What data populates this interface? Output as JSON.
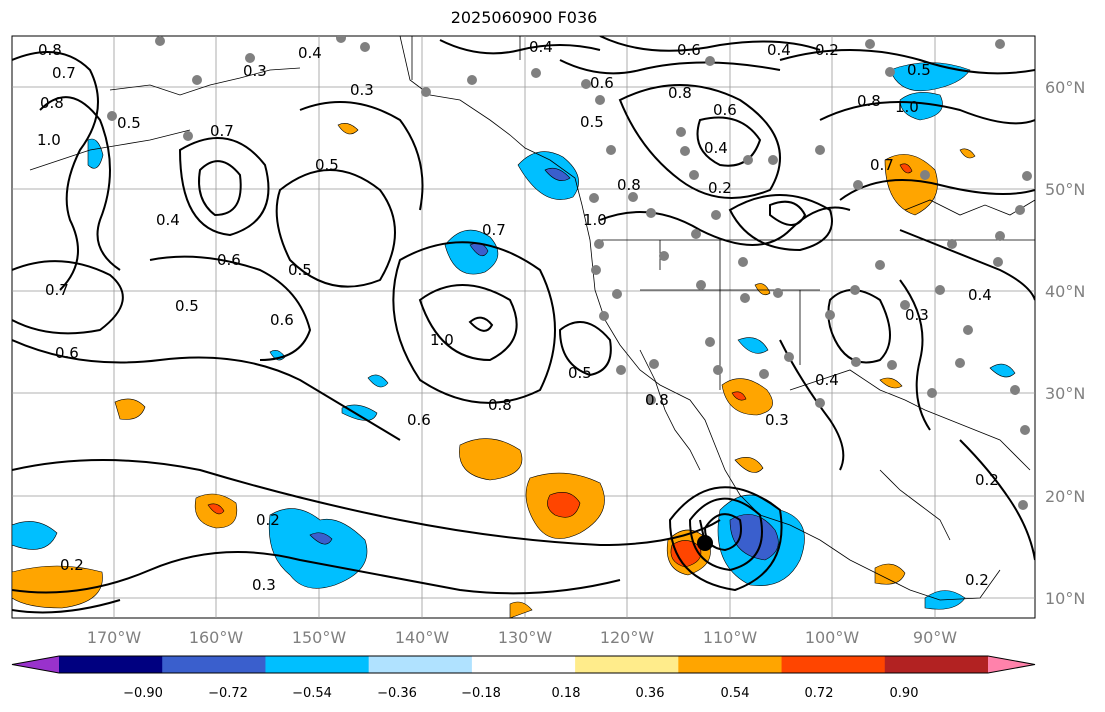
{
  "title": "2025060900 F036",
  "lon_labels": [
    "170°W",
    "160°W",
    "150°W",
    "140°W",
    "130°W",
    "120°W",
    "110°W",
    "100°W",
    "90°W"
  ],
  "lat_labels": [
    "60°N",
    "50°N",
    "40°N",
    "30°N",
    "20°N",
    "10°N"
  ],
  "colorbar": {
    "ticks": [
      "−0.90",
      "−0.72",
      "−0.54",
      "−0.36",
      "−0.18",
      "0.18",
      "0.36",
      "0.54",
      "0.72",
      "0.90"
    ],
    "colors": [
      "#9932cc",
      "#000080",
      "#3a5fcd",
      "#00bfff",
      "#b0e2ff",
      "#ffffff",
      "#ffec8b",
      "#ffa500",
      "#ff4500",
      "#b22222",
      "#ff82ab"
    ]
  },
  "contour_labels": [
    "0.8",
    "0.7",
    "0.8",
    "1.0",
    "0.5",
    "0.7",
    "0.3",
    "0.4",
    "0.3",
    "0.4",
    "0.6",
    "0.2",
    "0.4",
    "0.5",
    "0.6",
    "0.8",
    "0.4",
    "0.2",
    "0.8",
    "1.0",
    "0.8",
    "0.5",
    "0.6",
    "0.4",
    "0.7",
    "0.6",
    "0.5",
    "0.6",
    "0.5",
    "0.6",
    "0.7",
    "1.0",
    "0.5",
    "0.8",
    "0.6",
    "0.2",
    "0.3",
    "0.2",
    "0.5",
    "0.8",
    "0.3",
    "0.4",
    "0.3",
    "0.4",
    "0.2",
    "0.2",
    "0.7",
    "1.0"
  ]
}
